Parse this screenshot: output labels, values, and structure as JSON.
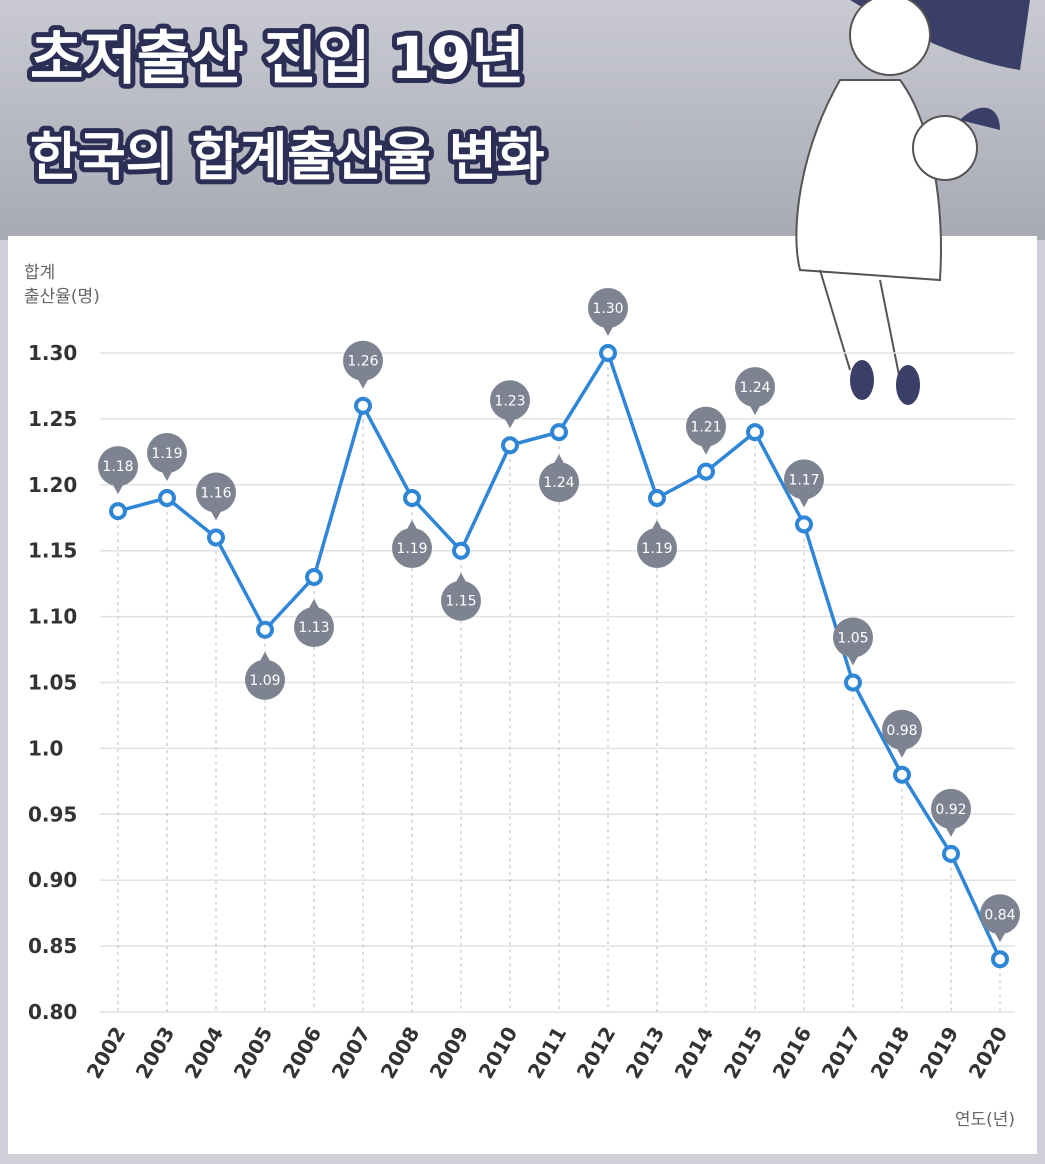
{
  "chart_data": {
    "type": "line",
    "title": [
      "초저출산 진입 19년",
      "한국의 합계출산율 변화"
    ],
    "y_label": [
      "합계",
      "출산율(명)"
    ],
    "x_label": "연도(년)",
    "categories": [
      "2002",
      "2003",
      "2004",
      "2005",
      "2006",
      "2007",
      "2008",
      "2009",
      "2010",
      "2011",
      "2012",
      "2013",
      "2014",
      "2015",
      "2016",
      "2017",
      "2018",
      "2019",
      "2020"
    ],
    "series": [
      {
        "name": "합계출산율",
        "color": "#2f86d6",
        "values": [
          1.18,
          1.19,
          1.16,
          1.09,
          1.13,
          1.26,
          1.19,
          1.15,
          1.23,
          1.24,
          1.3,
          1.19,
          1.21,
          1.24,
          1.17,
          1.05,
          0.98,
          0.92,
          0.84
        ],
        "value_labels": [
          "1.18",
          "1.19",
          "1.16",
          "1.09",
          "1.13",
          "1.26",
          "1.19",
          "1.15",
          "1.23",
          "1.24",
          "1.30",
          "1.19",
          "1.21",
          "1.24",
          "1.17",
          "1.05",
          "0.98",
          "0.92",
          "0.84"
        ]
      }
    ],
    "ylim": [
      0.8,
      1.3
    ],
    "yticks": [
      {
        "value": 0.8,
        "label": "0.80"
      },
      0.85,
      {
        "value": 0.9,
        "label": "0.90"
      },
      0.95,
      {
        "value": 1.0,
        "label": "1.0"
      },
      1.05,
      {
        "value": 1.1,
        "label": "1.10"
      },
      1.15,
      {
        "value": 1.2,
        "label": "1.20"
      },
      1.25,
      {
        "value": 1.3,
        "label": "1.30"
      }
    ],
    "grid": true
  }
}
